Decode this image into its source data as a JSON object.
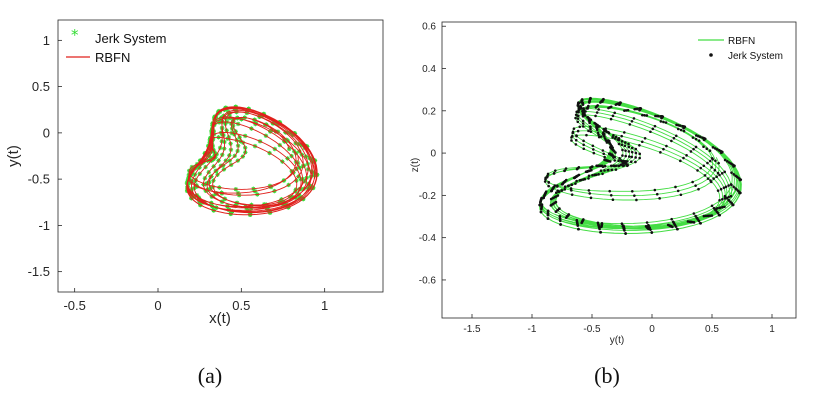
{
  "chart_data": [
    {
      "type": "line",
      "panel_caption": "(a)",
      "title": "",
      "xlabel": "x(t)",
      "ylabel": "y(t)",
      "xlim": [
        -0.6,
        1.35
      ],
      "ylim": [
        -1.72,
        1.22
      ],
      "xticks": [
        -0.5,
        0,
        0.5,
        1
      ],
      "yticks": [
        -1.5,
        -1,
        -0.5,
        0,
        0.5,
        1
      ],
      "grid": false,
      "legend_position": "top-left",
      "series": [
        {
          "name": "Jerk System",
          "style": "markers",
          "marker": "*",
          "color": "#33dd33",
          "attractor": {
            "cx": 0.49,
            "cy": -0.3,
            "ax": 0.69,
            "ay": 1.12,
            "bx": 0.13,
            "by": 0.09,
            "rx": 0.22,
            "ry": 0.28,
            "turns": 16,
            "samples_per_turn": 30
          }
        },
        {
          "name": "RBFN",
          "style": "line",
          "color": "#e0201c",
          "attractor": {
            "cx": 0.49,
            "cy": -0.3,
            "ax": 0.69,
            "ay": 1.12,
            "bx": 0.13,
            "by": 0.09,
            "rx": 0.22,
            "ry": 0.28,
            "turns": 16,
            "samples_per_turn": 90
          }
        }
      ]
    },
    {
      "type": "line",
      "panel_caption": "(b)",
      "title": "",
      "xlabel": "y(t)",
      "ylabel": "z(t)",
      "xlim": [
        -1.75,
        1.2
      ],
      "ylim": [
        -0.78,
        0.62
      ],
      "xticks": [
        -1.5,
        -1,
        -0.5,
        0,
        0.5,
        1
      ],
      "yticks": [
        -0.6,
        -0.4,
        -0.2,
        0,
        0.2,
        0.4,
        0.6
      ],
      "grid": false,
      "legend_position": "top-right",
      "series": [
        {
          "name": "RBFN",
          "style": "line",
          "color": "#44dd44",
          "attractor": {
            "cx": -0.25,
            "cy": -0.06,
            "ax": 1.15,
            "ay": 0.6,
            "bx": 0.44,
            "by": 0.06,
            "rx": 0.2,
            "ry": 0.2,
            "turns": 18,
            "samples_per_turn": 90
          }
        },
        {
          "name": "Jerk System",
          "style": "markers",
          "marker": ".",
          "color": "#111111",
          "attractor": {
            "cx": -0.25,
            "cy": -0.06,
            "ax": 1.15,
            "ay": 0.6,
            "bx": 0.44,
            "by": 0.06,
            "rx": 0.2,
            "ry": 0.2,
            "turns": 18,
            "samples_per_turn": 40
          }
        }
      ]
    }
  ]
}
